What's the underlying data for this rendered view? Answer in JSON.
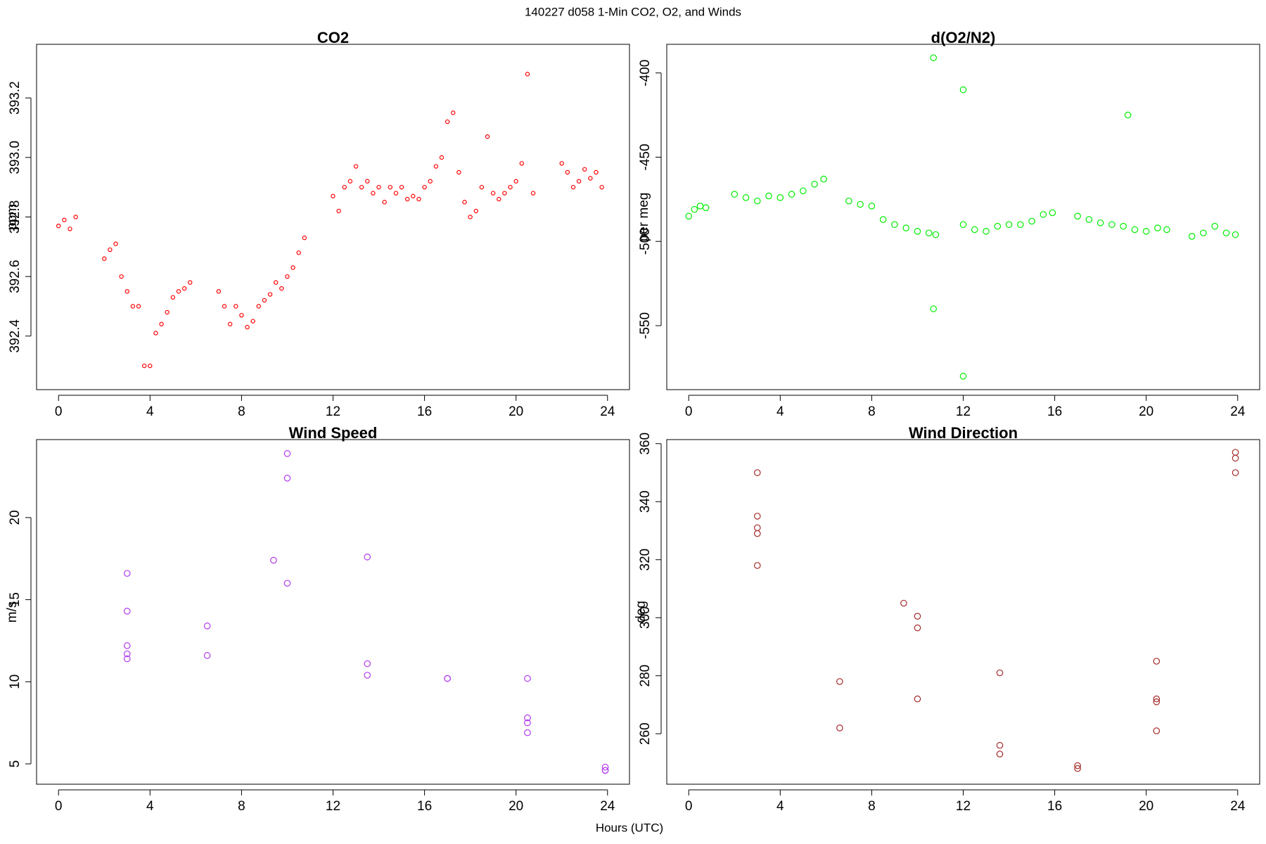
{
  "title": "140227   d058   1-Min CO2, O2, and Winds",
  "xlabel": "Hours (UTC)",
  "chart_data": [
    {
      "type": "scatter",
      "title": "CO2",
      "ylabel": "ppm",
      "color": "#ff0000",
      "xlim": [
        -0.96,
        24.96
      ],
      "xticks": [
        0,
        4,
        8,
        12,
        16,
        20,
        24
      ],
      "ylim": [
        392.22,
        393.38
      ],
      "yticks": [
        392.4,
        392.6,
        392.8,
        {
          "value": 393,
          "label": "393.0"
        },
        393.2
      ],
      "x": [
        0,
        0.25,
        0.5,
        0.75,
        2,
        2.25,
        2.5,
        2.75,
        3,
        3.25,
        3.5,
        3.75,
        4,
        4.25,
        4.5,
        4.75,
        5,
        5.25,
        5.5,
        5.75,
        7,
        7.25,
        7.5,
        7.75,
        8,
        8.25,
        8.5,
        8.75,
        9,
        9.25,
        9.5,
        9.75,
        10,
        10.25,
        10.5,
        10.75,
        12,
        12.25,
        12.5,
        12.75,
        13,
        13.25,
        13.5,
        13.75,
        14,
        14.25,
        14.5,
        14.75,
        15,
        15.25,
        15.5,
        15.75,
        16,
        16.25,
        16.5,
        16.75,
        17,
        17.25,
        17.5,
        17.75,
        18,
        18.25,
        18.5,
        18.75,
        19,
        19.25,
        19.5,
        19.75,
        20,
        20.25,
        20.5,
        20.75,
        22,
        22.25,
        22.5,
        22.75,
        23,
        23.25,
        23.5,
        23.75
      ],
      "values": [
        392.77,
        392.79,
        392.76,
        392.8,
        392.66,
        392.69,
        392.71,
        392.6,
        392.55,
        392.5,
        392.5,
        392.3,
        392.3,
        392.41,
        392.44,
        392.48,
        392.53,
        392.55,
        392.56,
        392.58,
        392.55,
        392.5,
        392.44,
        392.5,
        392.47,
        392.43,
        392.45,
        392.5,
        392.52,
        392.54,
        392.58,
        392.56,
        392.6,
        392.63,
        392.68,
        392.73,
        392.87,
        392.82,
        392.9,
        392.92,
        392.97,
        392.9,
        392.92,
        392.88,
        392.9,
        392.85,
        392.9,
        392.88,
        392.9,
        392.86,
        392.87,
        392.86,
        392.9,
        392.92,
        392.97,
        393.0,
        393.12,
        393.15,
        392.95,
        392.85,
        392.8,
        392.82,
        392.9,
        393.07,
        392.88,
        392.86,
        392.88,
        392.9,
        392.92,
        392.98,
        393.28,
        392.88,
        392.98,
        392.95,
        392.9,
        392.92,
        392.96,
        392.93,
        392.95,
        392.9
      ]
    },
    {
      "type": "scatter",
      "title": "d(O2/N2)",
      "ylabel": "per meg",
      "color": "#00ee00",
      "xlim": [
        -0.96,
        24.96
      ],
      "xticks": [
        0,
        4,
        8,
        12,
        16,
        20,
        24
      ],
      "ylim": [
        -588,
        -383
      ],
      "yticks": [
        -550,
        -500,
        -450,
        -400
      ],
      "x": [
        0,
        0.25,
        0.5,
        0.75,
        2,
        2.5,
        3,
        3.5,
        4,
        4.5,
        5,
        5.5,
        5.9,
        7,
        7.5,
        8,
        8.5,
        9,
        9.5,
        10,
        10.5,
        10.7,
        10.7,
        10.8,
        12,
        12,
        12,
        12.5,
        13,
        13.5,
        14,
        14.5,
        15,
        15.5,
        15.9,
        17,
        17.5,
        18,
        18.5,
        19,
        19.2,
        19.5,
        20,
        20.5,
        20.9,
        22,
        22.5,
        23,
        23.5,
        23.9
      ],
      "values": [
        -485,
        -481,
        -479,
        -480,
        -472,
        -474,
        -476,
        -473,
        -474,
        -472,
        -470,
        -466,
        -463,
        -476,
        -478,
        -479,
        -487,
        -490,
        -492,
        -494,
        -495,
        -391,
        -540,
        -496,
        -490,
        -410,
        -580,
        -493,
        -494,
        -491,
        -490,
        -490,
        -488,
        -484,
        -483,
        -485,
        -487,
        -489,
        -490,
        -491,
        -425,
        -493,
        -494,
        -492,
        -493,
        -497,
        -495,
        -491,
        -495,
        -496
      ]
    },
    {
      "type": "scatter",
      "title": "Wind Speed",
      "ylabel": "m/s",
      "color": "#b23aee",
      "xlim": [
        -0.96,
        24.96
      ],
      "xticks": [
        0,
        4,
        8,
        12,
        16,
        20,
        24
      ],
      "ylim": [
        3.76,
        24.75
      ],
      "yticks": [
        5,
        10,
        15,
        20
      ],
      "x": [
        3,
        3,
        3,
        3,
        3,
        6.5,
        6.5,
        9.4,
        10,
        10,
        10,
        13.5,
        13.5,
        13.5,
        17,
        17,
        20.5,
        20.5,
        20.5,
        20.5,
        23.9,
        23.9,
        23.9
      ],
      "values": [
        16.6,
        14.3,
        12.2,
        11.7,
        11.4,
        13.4,
        11.6,
        17.4,
        23.9,
        22.4,
        16.0,
        17.6,
        11.1,
        10.4,
        10.2,
        10.2,
        10.2,
        7.8,
        7.5,
        6.9,
        4.8,
        4.6,
        4.6
      ]
    },
    {
      "type": "scatter",
      "title": "Wind Direction",
      "ylabel": "deg",
      "color": "#a52a2a",
      "xlim": [
        -0.96,
        24.96
      ],
      "xticks": [
        0,
        4,
        8,
        12,
        16,
        20,
        24
      ],
      "ylim": [
        242.6,
        361.4
      ],
      "yticks": [
        260,
        280,
        300,
        320,
        340,
        360
      ],
      "x": [
        3,
        3,
        3,
        3,
        3,
        6.6,
        6.6,
        9.4,
        10,
        10,
        10,
        13.6,
        13.6,
        13.6,
        17,
        17,
        20.45,
        20.45,
        20.45,
        20.45,
        23.9,
        23.9,
        23.9
      ],
      "values": [
        350,
        335,
        331,
        329,
        318,
        278,
        262,
        305,
        300.5,
        296.5,
        272,
        281,
        256,
        253,
        249,
        248,
        285,
        272,
        271,
        261,
        357,
        355,
        350
      ]
    }
  ]
}
